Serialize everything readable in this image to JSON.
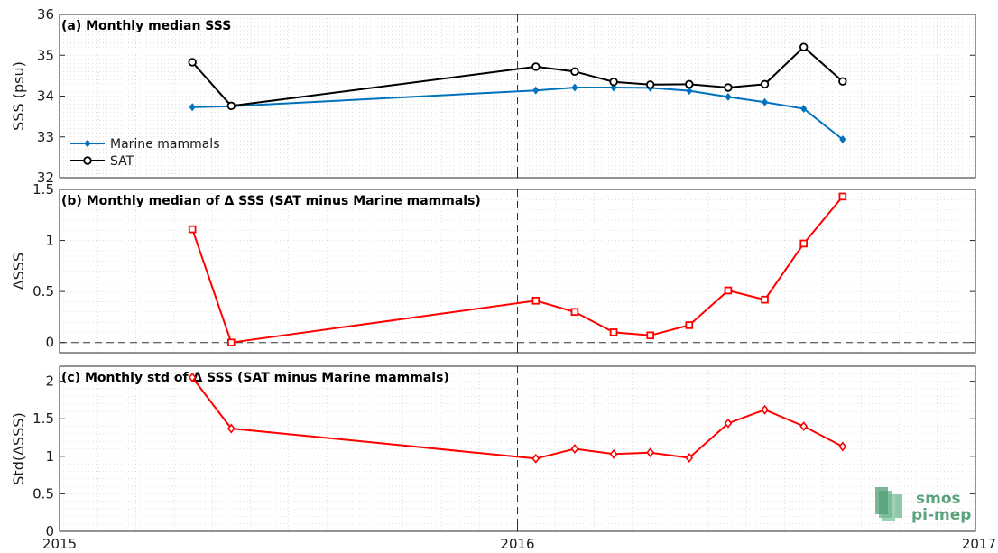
{
  "chart_data": [
    {
      "type": "line",
      "title": "(a) Monthly median SSS",
      "ylabel": "SSS (psu)",
      "ylim": [
        32,
        36
      ],
      "yticks": [
        "32",
        "33",
        "34",
        "35",
        "36"
      ],
      "x": [
        2015.29,
        2015.375,
        2016.04,
        2016.125,
        2016.21,
        2016.29,
        2016.375,
        2016.46,
        2016.54,
        2016.625,
        2016.71
      ],
      "series": [
        {
          "name": "Marine mammals",
          "color": "#0072bd",
          "marker": "diamond",
          "values": [
            33.73,
            33.75,
            34.14,
            34.21,
            34.21,
            34.2,
            34.13,
            33.98,
            33.85,
            33.69,
            32.94
          ]
        },
        {
          "name": "SAT",
          "color": "#000000",
          "marker": "circle",
          "values": [
            34.83,
            33.76,
            34.72,
            34.6,
            34.35,
            34.28,
            34.29,
            34.21,
            34.29,
            35.2,
            34.36
          ]
        }
      ],
      "legend": "bottom-left",
      "grid": true
    },
    {
      "type": "line",
      "title": "(b) Monthly median of Δ SSS (SAT minus Marine mammals)",
      "ylabel": "ΔSSS",
      "ylim": [
        -0.1,
        1.5
      ],
      "yticks": [
        "0",
        "0.5",
        "1",
        "1.5"
      ],
      "x": [
        2015.29,
        2015.375,
        2016.04,
        2016.125,
        2016.21,
        2016.29,
        2016.375,
        2016.46,
        2016.54,
        2016.625,
        2016.71
      ],
      "series": [
        {
          "color": "#ff0000",
          "marker": "square",
          "values": [
            1.11,
            0.0,
            0.41,
            0.3,
            0.1,
            0.07,
            0.17,
            0.51,
            0.42,
            0.97,
            1.43
          ]
        }
      ],
      "reference_line": 0,
      "grid": true
    },
    {
      "type": "line",
      "title": "(c) Monthly std of Δ SSS (SAT minus Marine mammals)",
      "ylabel": "Std(ΔSSS)",
      "ylim": [
        0,
        2.2
      ],
      "yticks": [
        "0",
        "0.5",
        "1",
        "1.5",
        "2"
      ],
      "x": [
        2015.29,
        2015.375,
        2016.04,
        2016.125,
        2016.21,
        2016.29,
        2016.375,
        2016.46,
        2016.54,
        2016.625,
        2016.71
      ],
      "series": [
        {
          "color": "#ff0000",
          "marker": "diamond",
          "values": [
            2.05,
            1.37,
            0.97,
            1.1,
            1.03,
            1.05,
            0.98,
            1.44,
            1.62,
            1.4,
            1.13
          ]
        }
      ],
      "grid": true
    }
  ],
  "xaxis": {
    "xlim": [
      2015,
      2017
    ],
    "ticks": [
      "2015",
      "2016",
      "2017"
    ],
    "vline": 2016
  },
  "logo": {
    "line1": "smos",
    "line2": "pi-mep",
    "color": "#5aa37d"
  }
}
